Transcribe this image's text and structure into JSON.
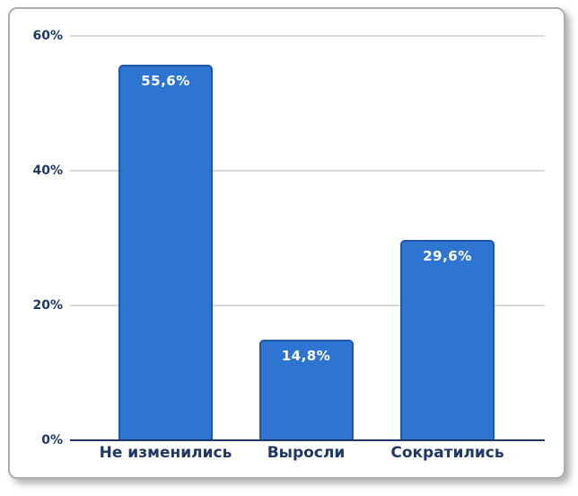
{
  "chart_data": {
    "type": "bar",
    "title": "",
    "xlabel": "",
    "ylabel": "",
    "categories": [
      "Не изменились",
      "Выросли",
      "Сократились"
    ],
    "values": [
      55.6,
      14.8,
      29.6
    ],
    "value_labels": [
      "55,6%",
      "14,8%",
      "29,6%"
    ],
    "ylim": [
      0,
      60
    ],
    "y_ticks": [
      0,
      20,
      40,
      60
    ],
    "y_tick_labels": [
      "0%",
      "20%",
      "40%",
      "60%"
    ],
    "grid": true,
    "legend": false,
    "colors": {
      "bar_fill": "#2e74d1",
      "bar_border": "#2057a6",
      "bar_label_text": "#ffffff",
      "axis_text": "#1f3864",
      "gridline": "#d9d9d9",
      "axis_line": "#1f3864",
      "card_border": "#adadad",
      "background": "#ffffff"
    }
  }
}
